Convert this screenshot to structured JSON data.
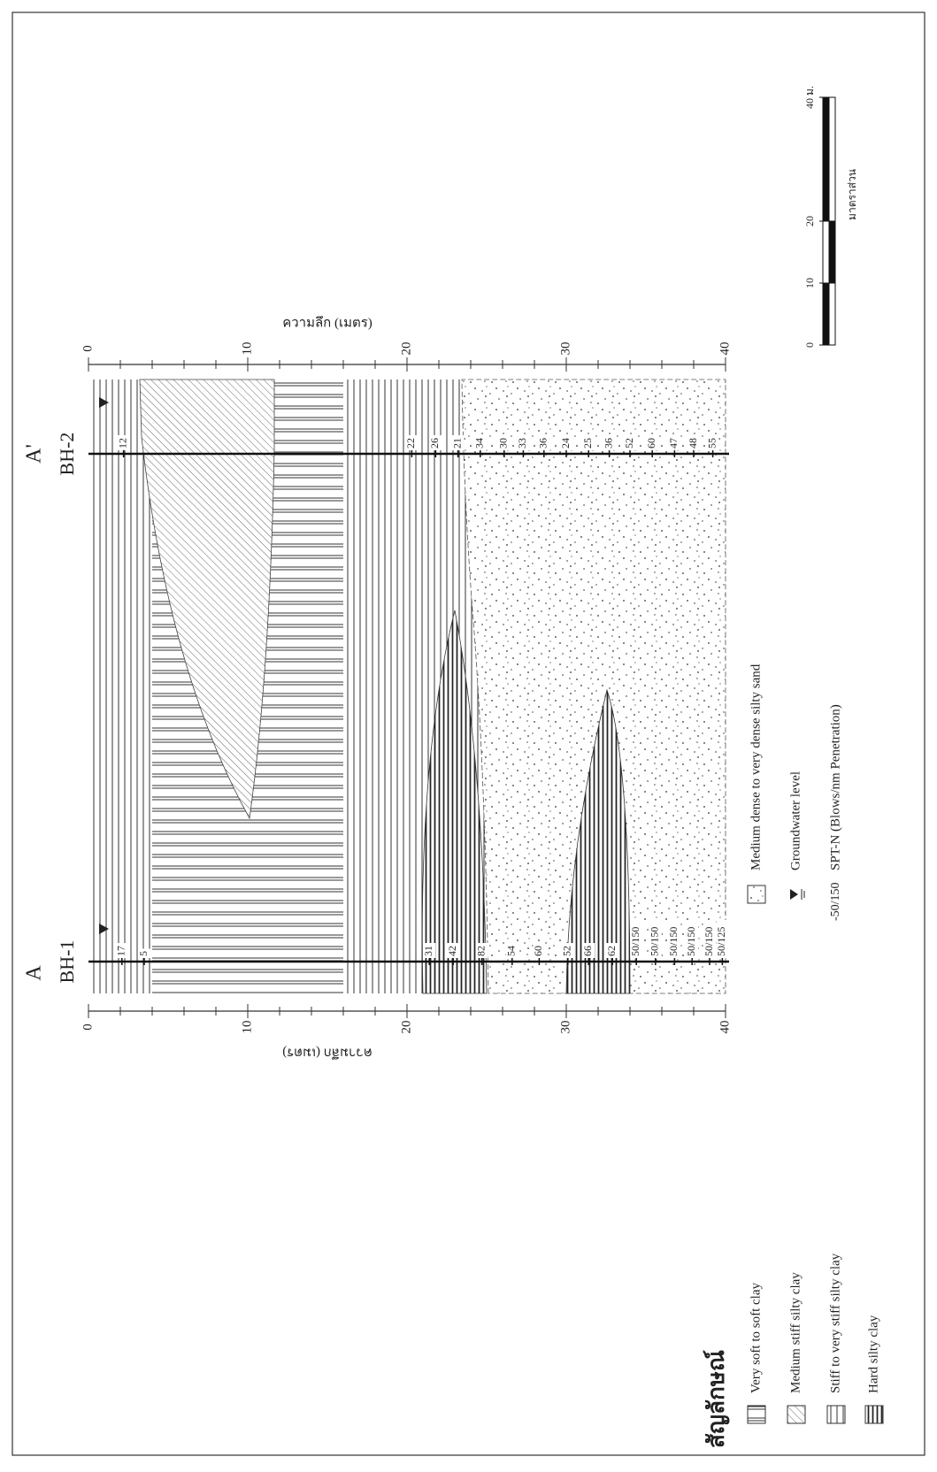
{
  "section": {
    "start": "A",
    "end": "A'"
  },
  "boreholes": [
    {
      "name": "BH-1",
      "spt": [
        17,
        5,
        31,
        42,
        82,
        54,
        60,
        52,
        66,
        62,
        "50/150",
        "50/150",
        "50/150",
        "50/150",
        "50/150",
        "50/125"
      ]
    },
    {
      "name": "BH-2",
      "spt": [
        12,
        22,
        26,
        21,
        34,
        30,
        33,
        36,
        24,
        25,
        36,
        52,
        60,
        47,
        48,
        55
      ]
    }
  ],
  "depth_axis": {
    "label": "ความลึก (เมตร)",
    "ticks": [
      0,
      10,
      20,
      30,
      40
    ]
  },
  "scale_bar": {
    "title": "มาตราส่วน",
    "ticks": [
      0,
      10,
      20,
      {
        "value": 40,
        "label": "40 ม."
      }
    ]
  },
  "legend": {
    "title": "สัญลักษณ์",
    "items": [
      "Very soft to soft clay",
      "Medium stiff silty clay",
      "Stiff to very stiff silty clay",
      "Hard silty clay"
    ],
    "sand": "Medium dense to very dense silty sand",
    "groundwater": "Groundwater level",
    "spt_example": "-50/150",
    "spt_label": "SPT-N (Blows/nm Penetration)"
  }
}
